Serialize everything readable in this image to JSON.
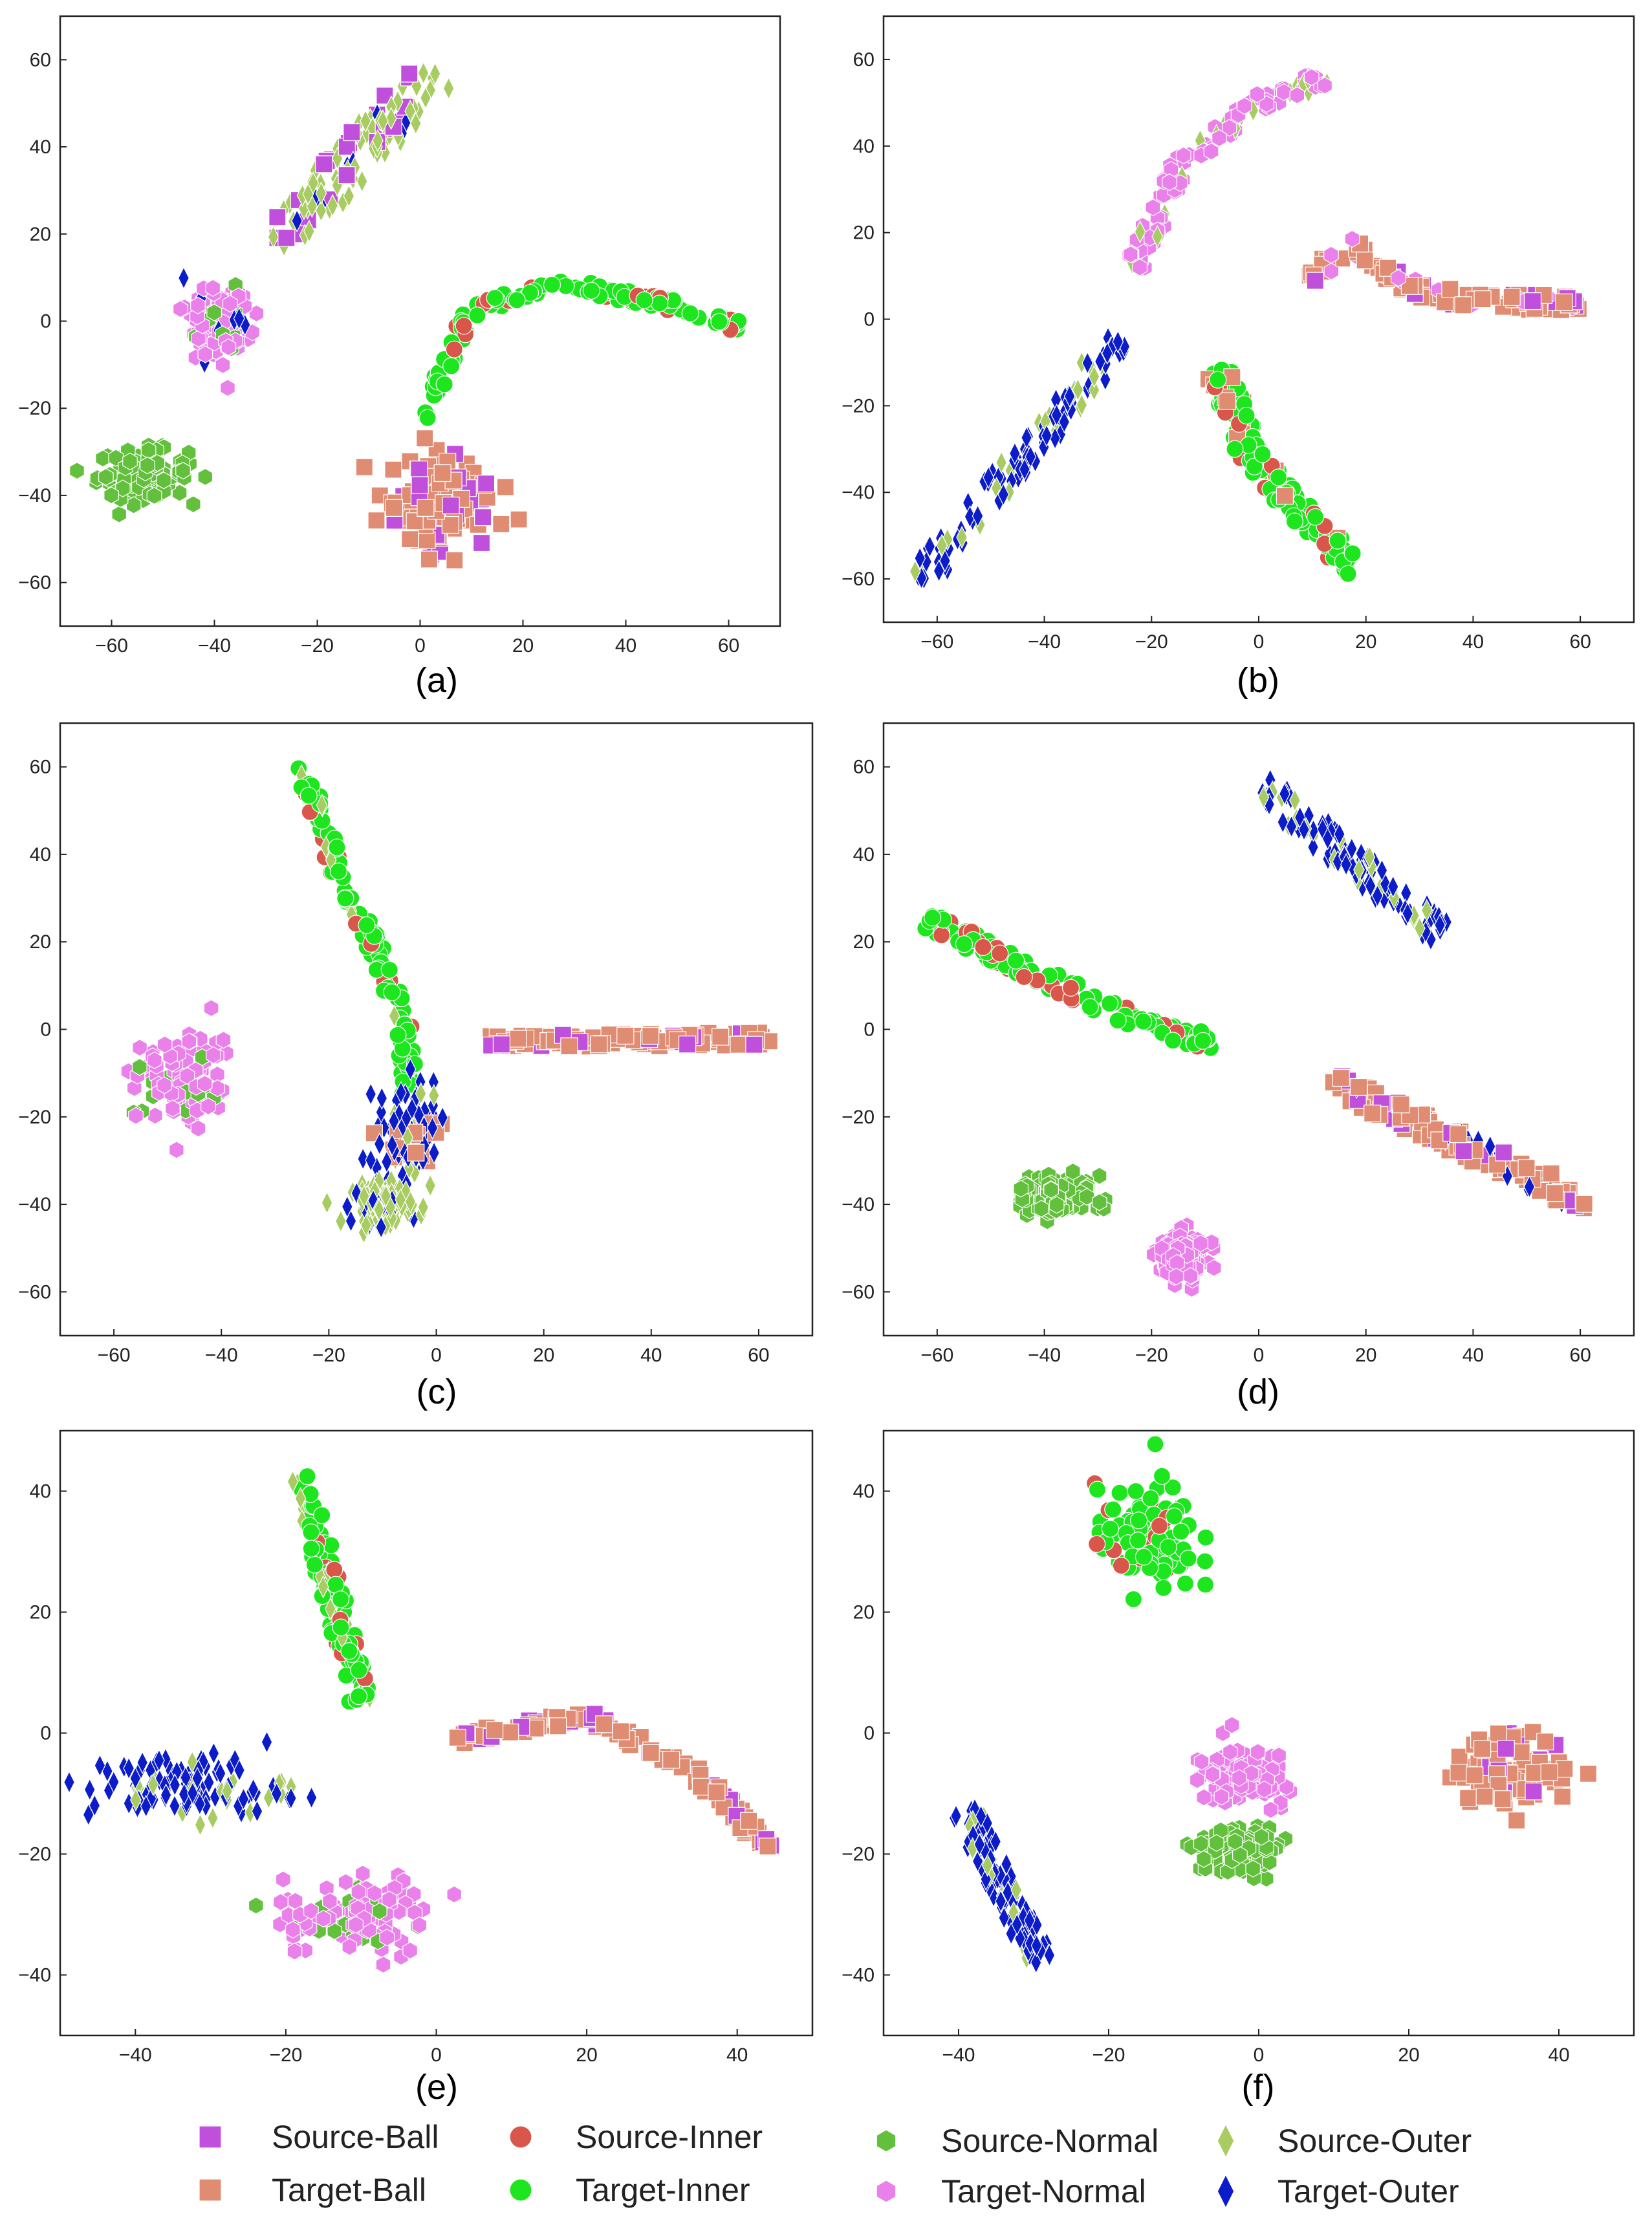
{
  "figure": {
    "legend": [
      {
        "label": "Source-Ball",
        "color": "#c050dc",
        "marker": "square"
      },
      {
        "label": "Source-Inner",
        "color": "#d9574a",
        "marker": "circle"
      },
      {
        "label": "Source-Normal",
        "color": "#62c03c",
        "marker": "hexagon"
      },
      {
        "label": "Source-Outer",
        "color": "#a8cc62",
        "marker": "thin-diamond"
      },
      {
        "label": "Target-Ball",
        "color": "#e08c72",
        "marker": "square"
      },
      {
        "label": "Target-Inner",
        "color": "#1ee61e",
        "marker": "circle"
      },
      {
        "label": "Target-Normal",
        "color": "#ea80ea",
        "marker": "hexagon"
      },
      {
        "label": "Target-Outer",
        "color": "#0b1cc8",
        "marker": "thin-diamond"
      }
    ]
  },
  "chart_data": [
    {
      "type": "scatter",
      "label": "(a)",
      "xlim": [
        -70,
        70
      ],
      "ylim": [
        -70,
        70
      ],
      "xticks": [
        -60,
        -40,
        -20,
        0,
        20,
        40,
        60
      ],
      "yticks": [
        -60,
        -40,
        -20,
        0,
        20,
        40,
        60
      ],
      "clusters": [
        {
          "classes": [
            "Source-Outer",
            "Target-Outer",
            "Source-Ball"
          ],
          "shape": "line",
          "from": [
            -28,
            18
          ],
          "to": [
            3,
            57
          ],
          "width": 9
        },
        {
          "classes": [
            "Target-Normal",
            "Source-Normal",
            "Target-Outer"
          ],
          "shape": "blob",
          "center": [
            -39,
            0
          ],
          "spread": [
            6,
            8
          ]
        },
        {
          "classes": [
            "Source-Normal"
          ],
          "shape": "blob",
          "center": [
            -54,
            -35
          ],
          "spread": [
            8,
            5
          ]
        },
        {
          "classes": [
            "Target-Inner",
            "Source-Inner"
          ],
          "shape": "arc",
          "points": [
            [
              0,
              -22
            ],
            [
              10,
              2
            ],
            [
              25,
              9
            ],
            [
              45,
              5
            ],
            [
              62,
              -1
            ]
          ],
          "width": 3
        },
        {
          "classes": [
            "Target-Ball",
            "Source-Ball"
          ],
          "shape": "blob",
          "center": [
            4,
            -42
          ],
          "spread": [
            9,
            11
          ]
        }
      ]
    },
    {
      "type": "scatter",
      "label": "(b)",
      "xlim": [
        -70,
        70
      ],
      "ylim": [
        -70,
        70
      ],
      "xticks": [
        -60,
        -40,
        -20,
        0,
        20,
        40,
        60
      ],
      "yticks": [
        -60,
        -40,
        -20,
        0,
        20,
        40,
        60
      ],
      "clusters": [
        {
          "classes": [
            "Target-Normal",
            "Source-Outer"
          ],
          "shape": "arc",
          "points": [
            [
              -23,
              12
            ],
            [
              -15,
              35
            ],
            [
              0,
              50
            ],
            [
              12,
              56
            ]
          ],
          "width": 4
        },
        {
          "classes": [
            "Target-Ball",
            "Source-Ball",
            "Target-Normal"
          ],
          "shape": "arc",
          "points": [
            [
              10,
              8
            ],
            [
              16,
              18
            ],
            [
              30,
              6
            ],
            [
              60,
              3
            ]
          ],
          "width": 4
        },
        {
          "classes": [
            "Target-Outer",
            "Source-Outer"
          ],
          "shape": "line",
          "from": [
            -63,
            -60
          ],
          "to": [
            -26,
            -5
          ],
          "width": 6
        },
        {
          "classes": [
            "Target-Inner",
            "Source-Inner",
            "Target-Ball"
          ],
          "shape": "arc",
          "points": [
            [
              -8,
              -10
            ],
            [
              -2,
              -30
            ],
            [
              8,
              -45
            ],
            [
              18,
              -58
            ]
          ],
          "width": 5
        }
      ]
    },
    {
      "type": "scatter",
      "label": "(c)",
      "xlim": [
        -70,
        70
      ],
      "ylim": [
        -70,
        70
      ],
      "xticks": [
        -60,
        -40,
        -20,
        0,
        20,
        40,
        60
      ],
      "yticks": [
        -60,
        -40,
        -20,
        0,
        20,
        40,
        60
      ],
      "clusters": [
        {
          "classes": [
            "Target-Inner",
            "Source-Inner",
            "Source-Outer"
          ],
          "shape": "arc",
          "points": [
            [
              -25,
              60
            ],
            [
              -18,
              35
            ],
            [
              -10,
              15
            ],
            [
              -6,
              0
            ],
            [
              -5,
              -15
            ]
          ],
          "width": 3
        },
        {
          "classes": [
            "Target-Outer",
            "Source-Outer",
            "Target-Ball"
          ],
          "shape": "blob",
          "center": [
            -5,
            -25
          ],
          "spread": [
            5,
            11
          ]
        },
        {
          "classes": [
            "Source-Outer",
            "Target-Outer"
          ],
          "shape": "blob",
          "center": [
            -10,
            -40
          ],
          "spread": [
            5,
            4
          ]
        },
        {
          "classes": [
            "Target-Ball",
            "Source-Ball"
          ],
          "shape": "line",
          "from": [
            10,
            -3
          ],
          "to": [
            62,
            -2
          ],
          "width": 3
        },
        {
          "classes": [
            "Target-Normal",
            "Source-Normal"
          ],
          "shape": "blob",
          "center": [
            -47,
            -12
          ],
          "spread": [
            7,
            9
          ]
        }
      ]
    },
    {
      "type": "scatter",
      "label": "(d)",
      "xlim": [
        -70,
        70
      ],
      "ylim": [
        -70,
        70
      ],
      "xticks": [
        -60,
        -40,
        -20,
        0,
        20,
        40,
        60
      ],
      "yticks": [
        -60,
        -40,
        -20,
        0,
        20,
        40,
        60
      ],
      "clusters": [
        {
          "classes": [
            "Target-Outer",
            "Source-Outer"
          ],
          "shape": "line",
          "from": [
            0,
            56
          ],
          "to": [
            34,
            22
          ],
          "width": 6
        },
        {
          "classes": [
            "Target-Inner",
            "Source-Inner"
          ],
          "shape": "arc",
          "points": [
            [
              -62,
              25
            ],
            [
              -45,
              15
            ],
            [
              -30,
              6
            ],
            [
              -20,
              0
            ],
            [
              -8,
              -3
            ]
          ],
          "width": 4
        },
        {
          "classes": [
            "Target-Ball",
            "Source-Ball",
            "Target-Outer"
          ],
          "shape": "line",
          "from": [
            13,
            -12
          ],
          "to": [
            62,
            -40
          ],
          "width": 5
        },
        {
          "classes": [
            "Source-Normal"
          ],
          "shape": "blob",
          "center": [
            -38,
            -38
          ],
          "spread": [
            6,
            4
          ]
        },
        {
          "classes": [
            "Target-Normal"
          ],
          "shape": "blob",
          "center": [
            -14,
            -52
          ],
          "spread": [
            4,
            5
          ]
        }
      ]
    },
    {
      "type": "scatter",
      "label": "(e)",
      "xlim": [
        -50,
        50
      ],
      "ylim": [
        -50,
        50
      ],
      "xticks": [
        -40,
        -20,
        0,
        20,
        40
      ],
      "yticks": [
        -40,
        -20,
        0,
        20,
        40
      ],
      "clusters": [
        {
          "classes": [
            "Target-Inner",
            "Source-Inner",
            "Source-Outer"
          ],
          "shape": "line",
          "from": [
            -18,
            43
          ],
          "to": [
            -10,
            5
          ],
          "width": 3
        },
        {
          "classes": [
            "Target-Ball",
            "Source-Ball"
          ],
          "shape": "arc",
          "points": [
            [
              2,
              -1
            ],
            [
              20,
              3
            ],
            [
              35,
              -7
            ],
            [
              44,
              -19
            ]
          ],
          "width": 2
        },
        {
          "classes": [
            "Target-Outer",
            "Source-Outer"
          ],
          "shape": "blob",
          "center": [
            -33,
            -9
          ],
          "spread": [
            12,
            5
          ]
        },
        {
          "classes": [
            "Target-Normal",
            "Source-Normal"
          ],
          "shape": "blob",
          "center": [
            -10,
            -30
          ],
          "spread": [
            9,
            6
          ]
        }
      ]
    },
    {
      "type": "scatter",
      "label": "(f)",
      "xlim": [
        -50,
        50
      ],
      "ylim": [
        -50,
        50
      ],
      "xticks": [
        -40,
        -20,
        0,
        20,
        40
      ],
      "yticks": [
        -40,
        -20,
        0,
        20,
        40
      ],
      "clusters": [
        {
          "classes": [
            "Target-Inner",
            "Source-Inner"
          ],
          "shape": "blob",
          "center": [
            -15,
            32
          ],
          "spread": [
            6,
            8
          ]
        },
        {
          "classes": [
            "Target-Ball",
            "Source-Ball"
          ],
          "shape": "blob",
          "center": [
            34,
            -6
          ],
          "spread": [
            7,
            5
          ]
        },
        {
          "classes": [
            "Target-Normal"
          ],
          "shape": "blob",
          "center": [
            -2,
            -7
          ],
          "spread": [
            5,
            4
          ]
        },
        {
          "classes": [
            "Source-Normal"
          ],
          "shape": "blob",
          "center": [
            -3,
            -19
          ],
          "spread": [
            5,
            4
          ]
        },
        {
          "classes": [
            "Target-Outer",
            "Source-Outer"
          ],
          "shape": "line",
          "from": [
            -39,
            -13
          ],
          "to": [
            -29,
            -38
          ],
          "width": 4
        }
      ]
    }
  ]
}
